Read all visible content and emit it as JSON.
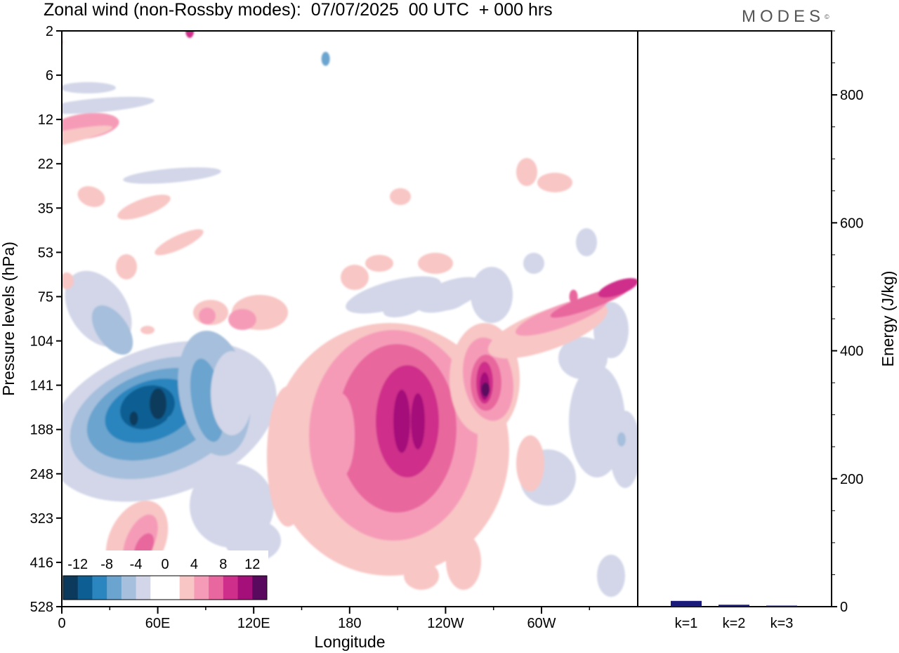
{
  "header": {
    "title": "Zonal wind (non-Rossby modes):  07/07/2025  00 UTC  + 000 hrs",
    "brand": "MODES",
    "brand_mark": "©"
  },
  "chart_data": [
    {
      "type": "heatmap",
      "title": "Zonal wind (non-Rossby modes):  07/07/2025  00 UTC  + 000 hrs",
      "xlabel": "Longitude",
      "ylabel": "Pressure levels (hPa)",
      "x_ticks": [
        "0",
        "60E",
        "120E",
        "180",
        "120W",
        "60W"
      ],
      "x_range_deg": [
        0,
        360
      ],
      "y_ticks": [
        "2",
        "6",
        "12",
        "22",
        "35",
        "53",
        "75",
        "104",
        "141",
        "188",
        "248",
        "323",
        "416",
        "528"
      ],
      "colorbar": {
        "labels": [
          "-12",
          "-8",
          "-4",
          "0",
          "4",
          "8",
          "12"
        ],
        "levels": [
          -14,
          -12,
          -10,
          -8,
          -6,
          -4,
          -2,
          0,
          2,
          4,
          6,
          8,
          10,
          12,
          14
        ],
        "colors": [
          "#0b3a5c",
          "#0d5f93",
          "#2b85be",
          "#6aa4cf",
          "#a6bfdc",
          "#d2d6e8",
          "#ffffff",
          "#ffffff",
          "#f8c6c4",
          "#f59bb8",
          "#e8679e",
          "#cf2f8a",
          "#a40f7a",
          "#5a0a5e"
        ]
      },
      "features": [
        {
          "lon": 45,
          "level": 175,
          "value": -13
        },
        {
          "lon": 68,
          "level": 180,
          "value": -9
        },
        {
          "lon": 90,
          "level": 150,
          "value": -6
        },
        {
          "lon": 38,
          "level": 460,
          "value": 6
        },
        {
          "lon": 178,
          "level": 210,
          "value": 5
        },
        {
          "lon": 212,
          "level": 200,
          "value": 10
        },
        {
          "lon": 265,
          "level": 145,
          "value": 12
        },
        {
          "lon": 320,
          "level": 75,
          "value": 7
        },
        {
          "lon": 80,
          "level": 2,
          "value": 9
        },
        {
          "lon": 165,
          "level": 4,
          "value": -6
        },
        {
          "lon": 350,
          "level": 200,
          "value": -5
        }
      ]
    },
    {
      "type": "bar",
      "categories": [
        "k=1",
        "k=2",
        "k=3"
      ],
      "values": [
        9,
        3,
        1
      ],
      "ylabel": "Energy (J/kg)",
      "ylim": [
        0,
        900
      ],
      "y_ticks": [
        0,
        200,
        400,
        600,
        800
      ],
      "bar_color": "#1a1a7a"
    }
  ]
}
